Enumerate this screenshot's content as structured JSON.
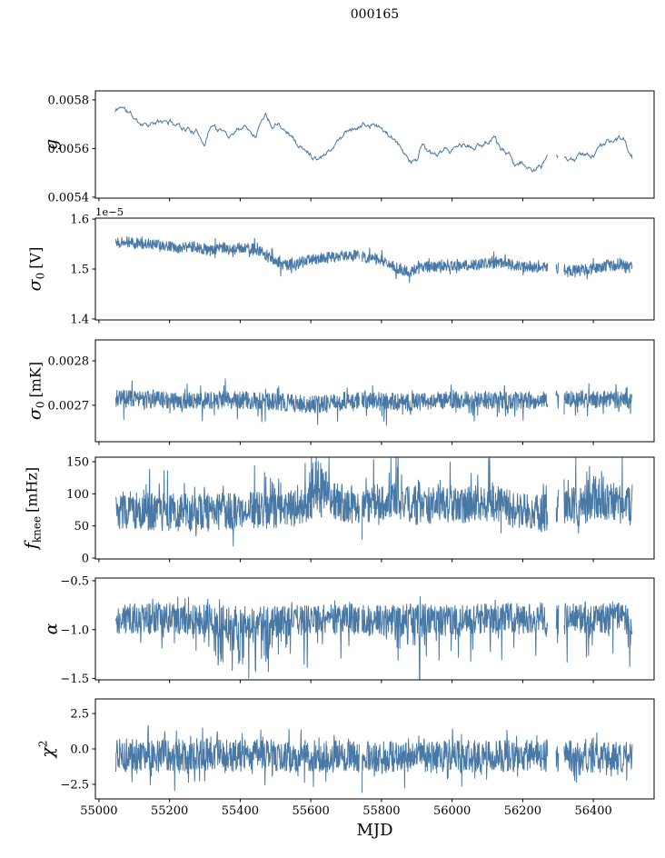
{
  "figure": {
    "title": "000165",
    "xlabel": "MJD",
    "line_color": "#4878a5",
    "axis_color": "#000000",
    "background": "#ffffff"
  },
  "x_axis": {
    "lim": [
      54990,
      56572
    ],
    "tick_values": [
      55000,
      55200,
      55400,
      55600,
      55800,
      56000,
      56200,
      56400
    ],
    "tick_labels": [
      "55000",
      "55200",
      "55400",
      "55600",
      "55800",
      "56000",
      "56200",
      "56400"
    ]
  },
  "chart_data": [
    {
      "id": "gain",
      "type": "line",
      "style": "walk",
      "ylabel": {
        "sym": "g",
        "sub": "",
        "sup": "",
        "unit": ""
      },
      "offset_text": "",
      "ylim": [
        0.005396,
        0.005837
      ],
      "yticks": {
        "values": [
          0.0058,
          0.0056,
          0.0054
        ],
        "labels": [
          "0.0058",
          "0.0056",
          "0.0054"
        ]
      },
      "x_range": [
        55045,
        56510
      ],
      "trend": [
        [
          55045,
          0.00575
        ],
        [
          55065,
          0.005775
        ],
        [
          55085,
          0.005745
        ],
        [
          55110,
          0.005705
        ],
        [
          55140,
          0.005715
        ],
        [
          55170,
          0.005705
        ],
        [
          55200,
          0.005705
        ],
        [
          55230,
          0.005695
        ],
        [
          55260,
          0.005685
        ],
        [
          55300,
          0.005635
        ],
        [
          55320,
          0.005715
        ],
        [
          55345,
          0.005675
        ],
        [
          55370,
          0.005655
        ],
        [
          55395,
          0.005695
        ],
        [
          55420,
          0.005705
        ],
        [
          55445,
          0.005675
        ],
        [
          55470,
          0.005765
        ],
        [
          55490,
          0.005715
        ],
        [
          55510,
          0.005735
        ],
        [
          55540,
          0.005685
        ],
        [
          55565,
          0.005625
        ],
        [
          55590,
          0.005585
        ],
        [
          55615,
          0.005575
        ],
        [
          55640,
          0.005595
        ],
        [
          55665,
          0.005625
        ],
        [
          55690,
          0.005665
        ],
        [
          55715,
          0.005695
        ],
        [
          55745,
          0.005705
        ],
        [
          55775,
          0.005695
        ],
        [
          55805,
          0.005675
        ],
        [
          55830,
          0.005635
        ],
        [
          55855,
          0.005585
        ],
        [
          55880,
          0.005555
        ],
        [
          55900,
          0.005545
        ],
        [
          55915,
          0.005635
        ],
        [
          55930,
          0.005585
        ],
        [
          55950,
          0.005555
        ],
        [
          55975,
          0.005565
        ],
        [
          56000,
          0.005585
        ],
        [
          56030,
          0.005605
        ],
        [
          56060,
          0.005595
        ],
        [
          56090,
          0.005615
        ],
        [
          56120,
          0.005655
        ],
        [
          56140,
          0.005605
        ],
        [
          56160,
          0.005575
        ],
        [
          56190,
          0.005545
        ],
        [
          56210,
          0.005535
        ],
        [
          56230,
          0.005495
        ],
        [
          56255,
          0.005525
        ],
        [
          56275,
          0.005555
        ],
        [
          56300,
          0.005535
        ],
        [
          56330,
          0.005545
        ],
        [
          56360,
          0.005555
        ],
        [
          56390,
          0.005565
        ],
        [
          56420,
          0.005605
        ],
        [
          56445,
          0.005625
        ],
        [
          56470,
          0.005635
        ],
        [
          56490,
          0.005615
        ],
        [
          56510,
          0.005555
        ]
      ],
      "noise": {
        "amp": 4.2e-06,
        "spikes": []
      },
      "clip": [
        0.00542,
        0.00583
      ],
      "gaps": [
        [
          56271,
          56294
        ],
        [
          56302,
          56317
        ]
      ],
      "events": [],
      "samples": 700,
      "seed": 11
    },
    {
      "id": "sigma0_V",
      "type": "line",
      "style": "band",
      "ylabel": {
        "sym": "σ",
        "sub": "0",
        "sup": "",
        "unit": "[V]"
      },
      "offset_text": "1e−5",
      "unit_scale": "1e-5",
      "ylim": [
        1.398,
        1.602
      ],
      "yticks": {
        "values": [
          1.6,
          1.5,
          1.4
        ],
        "labels": [
          "1.6",
          "1.5",
          "1.4"
        ]
      },
      "x_range": [
        55048,
        56510
      ],
      "trend": [
        [
          55048,
          1.557
        ],
        [
          55090,
          1.553
        ],
        [
          55130,
          1.55
        ],
        [
          55180,
          1.547
        ],
        [
          55230,
          1.542
        ],
        [
          55270,
          1.545
        ],
        [
          55310,
          1.537
        ],
        [
          55350,
          1.543
        ],
        [
          55400,
          1.542
        ],
        [
          55450,
          1.538
        ],
        [
          55480,
          1.527
        ],
        [
          55520,
          1.509
        ],
        [
          55555,
          1.507
        ],
        [
          55590,
          1.517
        ],
        [
          55630,
          1.522
        ],
        [
          55680,
          1.526
        ],
        [
          55730,
          1.527
        ],
        [
          55780,
          1.522
        ],
        [
          55820,
          1.512
        ],
        [
          55855,
          1.497
        ],
        [
          55885,
          1.494
        ],
        [
          55915,
          1.503
        ],
        [
          55950,
          1.505
        ],
        [
          56000,
          1.505
        ],
        [
          56050,
          1.509
        ],
        [
          56100,
          1.511
        ],
        [
          56150,
          1.511
        ],
        [
          56200,
          1.504
        ],
        [
          56250,
          1.504
        ],
        [
          56290,
          1.499
        ],
        [
          56330,
          1.497
        ],
        [
          56370,
          1.499
        ],
        [
          56410,
          1.503
        ],
        [
          56450,
          1.506
        ],
        [
          56480,
          1.508
        ],
        [
          56510,
          1.502
        ]
      ],
      "noise": {
        "amp": 0.011,
        "spikes": [
          {
            "prob": 0.05,
            "amp": 0.018,
            "dir": 1
          },
          {
            "prob": 0.05,
            "amp": 0.018,
            "dir": -1
          }
        ]
      },
      "clip": [
        1.412,
        1.598
      ],
      "gaps": [
        [
          55738,
          55744
        ],
        [
          56271,
          56294
        ],
        [
          56302,
          56317
        ]
      ],
      "events": [],
      "samples": 1500,
      "seed": 22
    },
    {
      "id": "sigma0_mK",
      "type": "line",
      "style": "band",
      "ylabel": {
        "sym": "σ",
        "sub": "0",
        "sup": "",
        "unit": "[mK]"
      },
      "offset_text": "",
      "ylim": [
        0.002618,
        0.002847
      ],
      "yticks": {
        "values": [
          0.0028,
          0.0027
        ],
        "labels": [
          "0.0028",
          "0.0027"
        ]
      },
      "x_range": [
        55048,
        56510
      ],
      "trend": [
        [
          55048,
          0.002716
        ],
        [
          55150,
          0.002713
        ],
        [
          55250,
          0.002709
        ],
        [
          55350,
          0.002713
        ],
        [
          55420,
          0.002711
        ],
        [
          55500,
          0.002709
        ],
        [
          55560,
          0.002704
        ],
        [
          55620,
          0.002702
        ],
        [
          55680,
          0.00271
        ],
        [
          55750,
          0.002712
        ],
        [
          55820,
          0.002709
        ],
        [
          55880,
          0.002706
        ],
        [
          55950,
          0.00271
        ],
        [
          56050,
          0.002712
        ],
        [
          56150,
          0.00271
        ],
        [
          56250,
          0.002712
        ],
        [
          56350,
          0.002714
        ],
        [
          56450,
          0.002713
        ],
        [
          56510,
          0.002709
        ]
      ],
      "noise": {
        "amp": 2e-05,
        "spikes": [
          {
            "prob": 0.06,
            "amp": 3.8e-05,
            "dir": -1
          },
          {
            "prob": 0.05,
            "amp": 2.8e-05,
            "dir": 1
          }
        ]
      },
      "clip": [
        0.00264,
        0.00279
      ],
      "gaps": [
        [
          55738,
          55744
        ],
        [
          56271,
          56294
        ],
        [
          56302,
          56317
        ]
      ],
      "events": [],
      "samples": 1500,
      "seed": 33
    },
    {
      "id": "fknee",
      "type": "line",
      "style": "band",
      "ylabel": {
        "sym": "f",
        "sub": "knee",
        "sup": "",
        "unit": "[mHz]"
      },
      "offset_text": "",
      "ylim": [
        -1.4,
        157
      ],
      "yticks": {
        "values": [
          150,
          100,
          50,
          0
        ],
        "labels": [
          "150",
          "100",
          "50",
          "0"
        ]
      },
      "x_range": [
        55048,
        56510
      ],
      "trend": [
        [
          55048,
          75
        ],
        [
          55150,
          72
        ],
        [
          55250,
          71
        ],
        [
          55350,
          72
        ],
        [
          55450,
          74
        ],
        [
          55550,
          78
        ],
        [
          55600,
          88
        ],
        [
          55650,
          90
        ],
        [
          55700,
          84
        ],
        [
          55750,
          83
        ],
        [
          55800,
          86
        ],
        [
          55850,
          87
        ],
        [
          55900,
          80
        ],
        [
          55950,
          82
        ],
        [
          56000,
          86
        ],
        [
          56050,
          83
        ],
        [
          56100,
          86
        ],
        [
          56150,
          79
        ],
        [
          56200,
          72
        ],
        [
          56250,
          69
        ],
        [
          56320,
          84
        ],
        [
          56360,
          79
        ],
        [
          56400,
          88
        ],
        [
          56450,
          86
        ],
        [
          56510,
          80
        ]
      ],
      "noise": {
        "amp": 30,
        "spikes": [
          {
            "prob": 0.06,
            "amp": 55,
            "dir": 1
          },
          {
            "prob": 0.04,
            "amp": 26,
            "dir": -1
          },
          {
            "prob": 0.45,
            "amp": 72,
            "dir": 1,
            "range": [
              55595,
              55655
            ]
          },
          {
            "prob": 0.3,
            "amp": 70,
            "dir": 1,
            "range": [
              55825,
              55850
            ]
          },
          {
            "prob": 0.3,
            "amp": 68,
            "dir": 1,
            "range": [
              56095,
              56115
            ]
          },
          {
            "prob": 0.15,
            "amp": 55,
            "dir": 1,
            "range": [
              55450,
              55520
            ]
          },
          {
            "prob": 0.12,
            "amp": 62,
            "dir": 1,
            "range": [
              56330,
              56510
            ]
          }
        ]
      },
      "clip": [
        15,
        156.5
      ],
      "gaps": [
        [
          55738,
          55744
        ],
        [
          56271,
          56294
        ],
        [
          56302,
          56317
        ]
      ],
      "events": [],
      "samples": 1500,
      "seed": 44
    },
    {
      "id": "alpha",
      "type": "line",
      "style": "band",
      "ylabel": {
        "sym": "α",
        "sub": "",
        "sup": "",
        "unit": ""
      },
      "offset_text": "",
      "ylim": [
        -1.514,
        -0.472
      ],
      "yticks": {
        "values": [
          -0.5,
          -1.0,
          -1.5
        ],
        "labels": [
          "−0.5",
          "−1.0",
          "−1.5"
        ]
      },
      "x_range": [
        55048,
        56510
      ],
      "trend": [
        [
          55048,
          -0.89
        ],
        [
          55200,
          -0.88
        ],
        [
          55300,
          -0.9
        ],
        [
          55400,
          -0.92
        ],
        [
          55500,
          -0.91
        ],
        [
          55600,
          -0.9
        ],
        [
          55700,
          -0.89
        ],
        [
          55800,
          -0.9
        ],
        [
          55900,
          -0.89
        ],
        [
          56000,
          -0.9
        ],
        [
          56100,
          -0.89
        ],
        [
          56200,
          -0.88
        ],
        [
          56300,
          -0.89
        ],
        [
          56400,
          -0.88
        ],
        [
          56510,
          -0.89
        ]
      ],
      "noise": {
        "amp": 0.16,
        "spikes": [
          {
            "prob": 0.1,
            "amp": 0.34,
            "dir": -1
          },
          {
            "prob": 0.07,
            "amp": 0.12,
            "dir": 1
          },
          {
            "prob": 0.22,
            "amp": 0.42,
            "dir": -1,
            "range": [
              55330,
              55520
            ]
          }
        ]
      },
      "clip": [
        -1.505,
        -0.6
      ],
      "gaps": [
        [
          55738,
          55744
        ],
        [
          56271,
          56294
        ],
        [
          56302,
          56317
        ]
      ],
      "events": [
        {
          "x": 55908,
          "v": -1.51
        }
      ],
      "samples": 1500,
      "seed": 55
    },
    {
      "id": "chi2",
      "type": "line",
      "style": "band",
      "ylabel": {
        "sym": "χ",
        "sub": "",
        "sup": "2",
        "unit": ""
      },
      "offset_text": "",
      "ylim": [
        -3.53,
        3.53
      ],
      "yticks": {
        "values": [
          2.5,
          0.0,
          -2.5
        ],
        "labels": [
          "2.5",
          "0.0",
          "−2.5"
        ]
      },
      "x_range": [
        55048,
        56510
      ],
      "trend": [
        [
          55048,
          -0.45
        ],
        [
          55200,
          -0.45
        ],
        [
          55300,
          -0.4
        ],
        [
          55400,
          -0.45
        ],
        [
          55500,
          -0.45
        ],
        [
          55600,
          -0.5
        ],
        [
          55700,
          -0.55
        ],
        [
          55800,
          -0.6
        ],
        [
          55900,
          -0.5
        ],
        [
          56000,
          -0.55
        ],
        [
          56100,
          -0.5
        ],
        [
          56200,
          -0.5
        ],
        [
          56300,
          -0.5
        ],
        [
          56400,
          -0.55
        ],
        [
          56510,
          -0.5
        ]
      ],
      "noise": {
        "amp": 1.15,
        "spikes": [
          {
            "prob": 0.1,
            "amp": 1.5,
            "dir": -1
          },
          {
            "prob": 0.09,
            "amp": 1.1,
            "dir": 1
          }
        ]
      },
      "clip": [
        -3.45,
        2.35
      ],
      "gaps": [
        [
          55738,
          55744
        ],
        [
          56271,
          56294
        ],
        [
          56302,
          56317
        ]
      ],
      "events": [],
      "samples": 1500,
      "seed": 66
    }
  ]
}
